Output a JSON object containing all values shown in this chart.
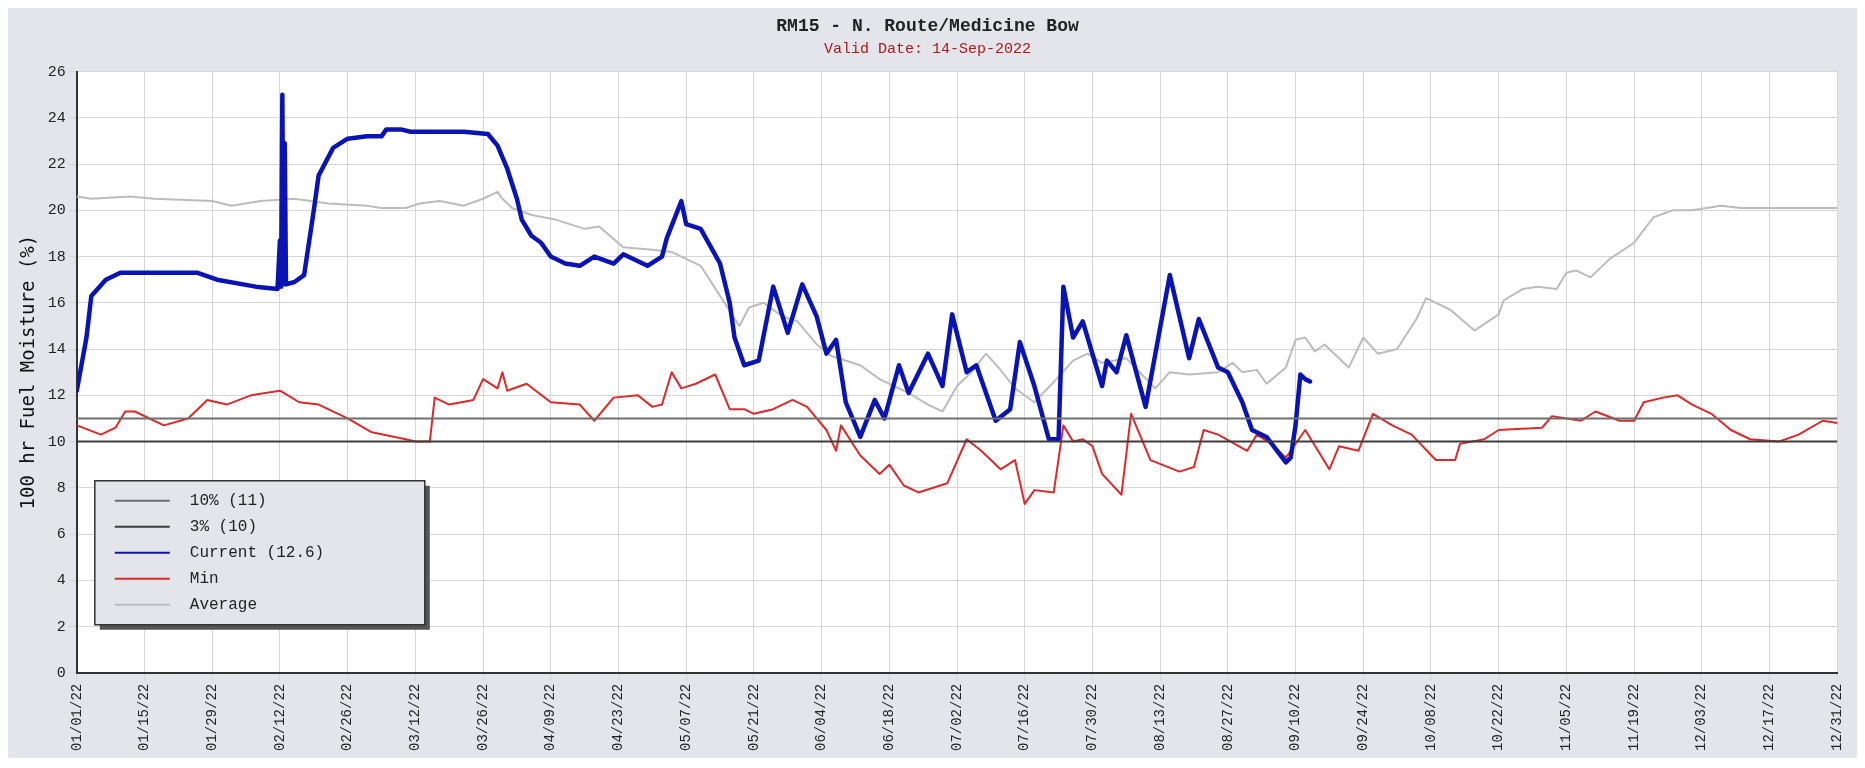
{
  "chart_data": {
    "type": "line",
    "title": "RM15 - N. Route/Medicine Bow",
    "subtitle": "Valid Date: 14-Sep-2022",
    "ylabel": "100 hr Fuel Moisture (%)",
    "xlim": [
      "2022-01-01",
      "2022-12-31"
    ],
    "xticks": [
      {
        "value": "2022-01-01",
        "label": "01/01/22"
      },
      {
        "value": "2022-01-15",
        "label": "01/15/22"
      },
      {
        "value": "2022-01-29",
        "label": "01/29/22"
      },
      {
        "value": "2022-02-12",
        "label": "02/12/22"
      },
      {
        "value": "2022-02-26",
        "label": "02/26/22"
      },
      {
        "value": "2022-03-12",
        "label": "03/12/22"
      },
      {
        "value": "2022-03-26",
        "label": "03/26/22"
      },
      {
        "value": "2022-04-09",
        "label": "04/09/22"
      },
      {
        "value": "2022-04-23",
        "label": "04/23/22"
      },
      {
        "value": "2022-05-07",
        "label": "05/07/22"
      },
      {
        "value": "2022-05-21",
        "label": "05/21/22"
      },
      {
        "value": "2022-06-04",
        "label": "06/04/22"
      },
      {
        "value": "2022-06-18",
        "label": "06/18/22"
      },
      {
        "value": "2022-07-02",
        "label": "07/02/22"
      },
      {
        "value": "2022-07-16",
        "label": "07/16/22"
      },
      {
        "value": "2022-07-30",
        "label": "07/30/22"
      },
      {
        "value": "2022-08-13",
        "label": "08/13/22"
      },
      {
        "value": "2022-08-27",
        "label": "08/27/22"
      },
      {
        "value": "2022-09-10",
        "label": "09/10/22"
      },
      {
        "value": "2022-09-24",
        "label": "09/24/22"
      },
      {
        "value": "2022-10-08",
        "label": "10/08/22"
      },
      {
        "value": "2022-10-22",
        "label": "10/22/22"
      },
      {
        "value": "2022-11-05",
        "label": "11/05/22"
      },
      {
        "value": "2022-11-19",
        "label": "11/19/22"
      },
      {
        "value": "2022-12-03",
        "label": "12/03/22"
      },
      {
        "value": "2022-12-17",
        "label": "12/17/22"
      },
      {
        "value": "2022-12-31",
        "label": "12/31/22"
      }
    ],
    "ylim": [
      0,
      26
    ],
    "yticks": [
      0,
      2,
      4,
      6,
      8,
      10,
      12,
      14,
      16,
      18,
      20,
      22,
      24,
      26
    ],
    "grid": true,
    "legend": "bottom left",
    "series": [
      {
        "name": "10% (11)",
        "color": "#6e6e6e",
        "x": [
          "2022-01-01",
          "2022-12-31"
        ],
        "values": [
          11,
          11
        ]
      },
      {
        "name": "3% (10)",
        "color": "#3c3c3c",
        "x": [
          "2022-01-01",
          "2022-12-31"
        ],
        "values": [
          10,
          10
        ]
      },
      {
        "name": "Current (12.6)",
        "color": "#0a14b4",
        "x": [
          "2022-01-01",
          "2022-01-03",
          "2022-01-04",
          "2022-01-07",
          "2022-01-10",
          "2022-01-26",
          "2022-01-30",
          "2022-02-07",
          "2022-02-11T12:00",
          "2022-02-12T00:00",
          "2022-02-12T06:00",
          "2022-02-12T12:00",
          "2022-02-12T18:00",
          "2022-02-13T00:00",
          "2022-02-13T06:00",
          "2022-02-15",
          "2022-02-17",
          "2022-02-19",
          "2022-02-20",
          "2022-02-23",
          "2022-02-26",
          "2022-03-02",
          "2022-03-05",
          "2022-03-06",
          "2022-03-09",
          "2022-03-11",
          "2022-03-22",
          "2022-03-27",
          "2022-03-29",
          "2022-03-31",
          "2022-04-02",
          "2022-04-03",
          "2022-04-05",
          "2022-04-07",
          "2022-04-09",
          "2022-04-12",
          "2022-04-15",
          "2022-04-18",
          "2022-04-22",
          "2022-04-24",
          "2022-04-29",
          "2022-05-02",
          "2022-05-03",
          "2022-05-06",
          "2022-05-07",
          "2022-05-10",
          "2022-05-14",
          "2022-05-16",
          "2022-05-17",
          "2022-05-19",
          "2022-05-22",
          "2022-05-25",
          "2022-05-28",
          "2022-05-31",
          "2022-06-03",
          "2022-06-05",
          "2022-06-07",
          "2022-06-09",
          "2022-06-12",
          "2022-06-15",
          "2022-06-17",
          "2022-06-20",
          "2022-06-22",
          "2022-06-26",
          "2022-06-29",
          "2022-07-01",
          "2022-07-04",
          "2022-07-06",
          "2022-07-10",
          "2022-07-13",
          "2022-07-15",
          "2022-07-18",
          "2022-07-21",
          "2022-07-23",
          "2022-07-24",
          "2022-07-26",
          "2022-07-28",
          "2022-08-01",
          "2022-08-02",
          "2022-08-04",
          "2022-08-06",
          "2022-08-10",
          "2022-08-15",
          "2022-08-19",
          "2022-08-21",
          "2022-08-25",
          "2022-08-27",
          "2022-08-30",
          "2022-09-01",
          "2022-09-04",
          "2022-09-08",
          "2022-09-09",
          "2022-09-10",
          "2022-09-11",
          "2022-09-12",
          "2022-09-13"
        ],
        "values": [
          12.2,
          14.5,
          16.3,
          17.0,
          17.3,
          17.3,
          17.0,
          16.7,
          16.6,
          18.7,
          16.7,
          25.0,
          16.8,
          22.9,
          16.8,
          16.9,
          17.2,
          20.0,
          21.5,
          22.7,
          23.1,
          23.2,
          23.2,
          23.5,
          23.5,
          23.4,
          23.4,
          23.3,
          22.8,
          21.8,
          20.5,
          19.6,
          18.9,
          18.6,
          18.0,
          17.7,
          17.6,
          18.0,
          17.7,
          18.1,
          17.6,
          18.0,
          18.8,
          20.4,
          19.4,
          19.2,
          17.7,
          16.0,
          14.5,
          13.3,
          13.5,
          16.7,
          14.7,
          16.8,
          15.4,
          13.8,
          14.4,
          11.7,
          10.2,
          11.8,
          11.0,
          13.3,
          12.1,
          13.8,
          12.4,
          15.5,
          13.0,
          13.3,
          10.9,
          11.4,
          14.3,
          12.4,
          10.1,
          10.1,
          16.7,
          14.5,
          15.2,
          12.4,
          13.5,
          13.0,
          14.6,
          11.5,
          17.2,
          13.6,
          15.3,
          13.2,
          13.0,
          11.7,
          10.5,
          10.2,
          9.1,
          9.3,
          10.7,
          12.9,
          12.7,
          12.6
        ]
      },
      {
        "name": "Min",
        "color": "#dc2a2a",
        "x": [
          "2022-01-01",
          "2022-01-06",
          "2022-01-09",
          "2022-01-11",
          "2022-01-13",
          "2022-01-19",
          "2022-01-24",
          "2022-01-28",
          "2022-02-01",
          "2022-02-06",
          "2022-02-12",
          "2022-02-16",
          "2022-02-20",
          "2022-02-26",
          "2022-03-03",
          "2022-03-10",
          "2022-03-12",
          "2022-03-15",
          "2022-03-16",
          "2022-03-19",
          "2022-03-24",
          "2022-03-26",
          "2022-03-29",
          "2022-03-30",
          "2022-03-31",
          "2022-04-04",
          "2022-04-09",
          "2022-04-15",
          "2022-04-18",
          "2022-04-22",
          "2022-04-27",
          "2022-04-30",
          "2022-05-02",
          "2022-05-04",
          "2022-05-06",
          "2022-05-09",
          "2022-05-13",
          "2022-05-16",
          "2022-05-19",
          "2022-05-21",
          "2022-05-25",
          "2022-05-29",
          "2022-06-01",
          "2022-06-05",
          "2022-06-07",
          "2022-06-08",
          "2022-06-12",
          "2022-06-16",
          "2022-06-18",
          "2022-06-21",
          "2022-06-24",
          "2022-06-30",
          "2022-07-04",
          "2022-07-07",
          "2022-07-11",
          "2022-07-14",
          "2022-07-16",
          "2022-07-18",
          "2022-07-22",
          "2022-07-24",
          "2022-07-26",
          "2022-07-28",
          "2022-07-30",
          "2022-08-01",
          "2022-08-05",
          "2022-08-07",
          "2022-08-11",
          "2022-08-17",
          "2022-08-20",
          "2022-08-22",
          "2022-08-25",
          "2022-08-31",
          "2022-09-02",
          "2022-09-05",
          "2022-09-08",
          "2022-09-12",
          "2022-09-17",
          "2022-09-19",
          "2022-09-23",
          "2022-09-26",
          "2022-09-30",
          "2022-10-04",
          "2022-10-09",
          "2022-10-13",
          "2022-10-14",
          "2022-10-19",
          "2022-10-22",
          "2022-10-31",
          "2022-11-02",
          "2022-11-08",
          "2022-11-11",
          "2022-11-16",
          "2022-11-19",
          "2022-11-21",
          "2022-11-25",
          "2022-11-28",
          "2022-12-01",
          "2022-12-05",
          "2022-12-09",
          "2022-12-13",
          "2022-12-19",
          "2022-12-23",
          "2022-12-28",
          "2022-12-31"
        ],
        "values": [
          10.7,
          10.3,
          10.6,
          11.3,
          11.3,
          10.7,
          11.0,
          11.8,
          11.6,
          12.0,
          12.2,
          11.7,
          11.6,
          11.0,
          10.4,
          10.1,
          10.0,
          10.0,
          11.9,
          11.6,
          11.8,
          12.7,
          12.3,
          13.0,
          12.2,
          12.5,
          11.7,
          11.6,
          10.9,
          11.9,
          12.0,
          11.5,
          11.6,
          13.0,
          12.3,
          12.5,
          12.9,
          11.4,
          11.4,
          11.2,
          11.4,
          11.8,
          11.5,
          10.5,
          9.6,
          10.7,
          9.4,
          8.6,
          9.0,
          8.1,
          7.8,
          8.2,
          10.1,
          9.6,
          8.8,
          9.2,
          7.3,
          7.9,
          7.8,
          10.7,
          10.0,
          10.1,
          9.8,
          8.6,
          7.7,
          11.2,
          9.2,
          8.7,
          8.9,
          10.5,
          10.3,
          9.6,
          10.3,
          9.9,
          9.3,
          10.5,
          8.8,
          9.8,
          9.6,
          11.2,
          10.7,
          10.3,
          9.2,
          9.2,
          9.9,
          10.1,
          10.5,
          10.6,
          11.1,
          10.9,
          11.3,
          10.9,
          10.9,
          11.7,
          11.9,
          12.0,
          11.6,
          11.2,
          10.5,
          10.1,
          10.0,
          10.3,
          10.9,
          10.8
        ]
      },
      {
        "name": "Average",
        "color": "#bcbcbc",
        "x": [
          "2022-01-01",
          "2022-01-04",
          "2022-01-12",
          "2022-01-17",
          "2022-01-29",
          "2022-02-02",
          "2022-02-08",
          "2022-02-15",
          "2022-02-22",
          "2022-03-02",
          "2022-03-05",
          "2022-03-10",
          "2022-03-13",
          "2022-03-17",
          "2022-03-22",
          "2022-03-26",
          "2022-03-29",
          "2022-03-30",
          "2022-04-01",
          "2022-04-05",
          "2022-04-10",
          "2022-04-16",
          "2022-04-19",
          "2022-04-24",
          "2022-04-30",
          "2022-05-04",
          "2022-05-10",
          "2022-05-14",
          "2022-05-18",
          "2022-05-20",
          "2022-05-23",
          "2022-05-27",
          "2022-05-30",
          "2022-06-03",
          "2022-06-06",
          "2022-06-12",
          "2022-06-16",
          "2022-06-22",
          "2022-06-26",
          "2022-06-29",
          "2022-07-02",
          "2022-07-05",
          "2022-07-08",
          "2022-07-11",
          "2022-07-14",
          "2022-07-18",
          "2022-07-23",
          "2022-07-26",
          "2022-07-29",
          "2022-08-01",
          "2022-08-06",
          "2022-08-12",
          "2022-08-15",
          "2022-08-19",
          "2022-08-25",
          "2022-08-28",
          "2022-08-30",
          "2022-09-02",
          "2022-09-04",
          "2022-09-08",
          "2022-09-10",
          "2022-09-12",
          "2022-09-14",
          "2022-09-16",
          "2022-09-21",
          "2022-09-24",
          "2022-09-27",
          "2022-10-01",
          "2022-10-05",
          "2022-10-07",
          "2022-10-12",
          "2022-10-17",
          "2022-10-22",
          "2022-10-23",
          "2022-10-27",
          "2022-10-30",
          "2022-11-03",
          "2022-11-05",
          "2022-11-07",
          "2022-11-10",
          "2022-11-14",
          "2022-11-19",
          "2022-11-23",
          "2022-11-27",
          "2022-12-01",
          "2022-12-07",
          "2022-12-11",
          "2022-12-19",
          "2022-12-31"
        ],
        "values": [
          20.6,
          20.5,
          20.6,
          20.5,
          20.4,
          20.2,
          20.4,
          20.5,
          20.3,
          20.2,
          20.1,
          20.1,
          20.3,
          20.4,
          20.2,
          20.5,
          20.8,
          20.5,
          20.1,
          19.8,
          19.6,
          19.2,
          19.3,
          18.4,
          18.3,
          18.2,
          17.6,
          16.3,
          15.0,
          15.8,
          16.0,
          15.4,
          15.2,
          14.2,
          13.7,
          13.3,
          12.7,
          12.1,
          11.6,
          11.3,
          12.4,
          13.0,
          13.8,
          13.1,
          12.3,
          11.7,
          12.8,
          13.5,
          13.8,
          13.4,
          13.6,
          12.3,
          13.0,
          12.9,
          13.0,
          13.4,
          13.0,
          13.1,
          12.5,
          13.2,
          14.4,
          14.5,
          13.9,
          14.2,
          13.2,
          14.5,
          13.8,
          14.0,
          15.3,
          16.2,
          15.7,
          14.8,
          15.5,
          16.1,
          16.6,
          16.7,
          16.6,
          17.3,
          17.4,
          17.1,
          17.9,
          18.6,
          19.7,
          20.0,
          20.0,
          20.2,
          20.1,
          20.1,
          20.1
        ]
      }
    ]
  }
}
